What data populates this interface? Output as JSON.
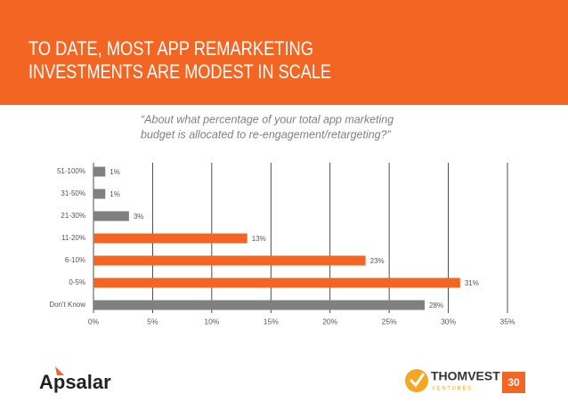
{
  "header": {
    "title_lines": [
      "TO DATE, MOST APP REMARKETING",
      "INVESTMENTS ARE MODEST IN SCALE"
    ]
  },
  "chart_data": {
    "type": "hbar",
    "subtitle_lines": [
      "“About what percentage of your total app marketing",
      "budget is allocated to re-engagement/retargeting?”"
    ],
    "categories": [
      "51-100%",
      "31-50%",
      "21-30%",
      "11-20%",
      "6-10%",
      "0-5%",
      "Don't Know"
    ],
    "values": [
      1,
      1,
      3,
      13,
      23,
      31,
      28
    ],
    "value_labels": [
      "1%",
      "1%",
      "3%",
      "13%",
      "23%",
      "31%",
      "28%"
    ],
    "colors": [
      "#808080",
      "#808080",
      "#808080",
      "#f26522",
      "#f26522",
      "#f26522",
      "#808080"
    ],
    "xlim": [
      0,
      35
    ],
    "xticks": [
      {
        "value": 0,
        "label": "0%"
      },
      {
        "value": 5,
        "label": "5%"
      },
      {
        "value": 10,
        "label": "10%"
      },
      {
        "value": 15,
        "label": "15%"
      },
      {
        "value": 20,
        "label": "20%"
      },
      {
        "value": 25,
        "label": "25%"
      },
      {
        "value": 30,
        "label": "30%"
      },
      {
        "value": 35,
        "label": "35%"
      }
    ],
    "grid": true
  },
  "footer": {
    "left_logo": "Apsalar",
    "right_logo": "THOMVEST",
    "right_logo_sub": "V E N T U R E S",
    "page_number": "30"
  }
}
